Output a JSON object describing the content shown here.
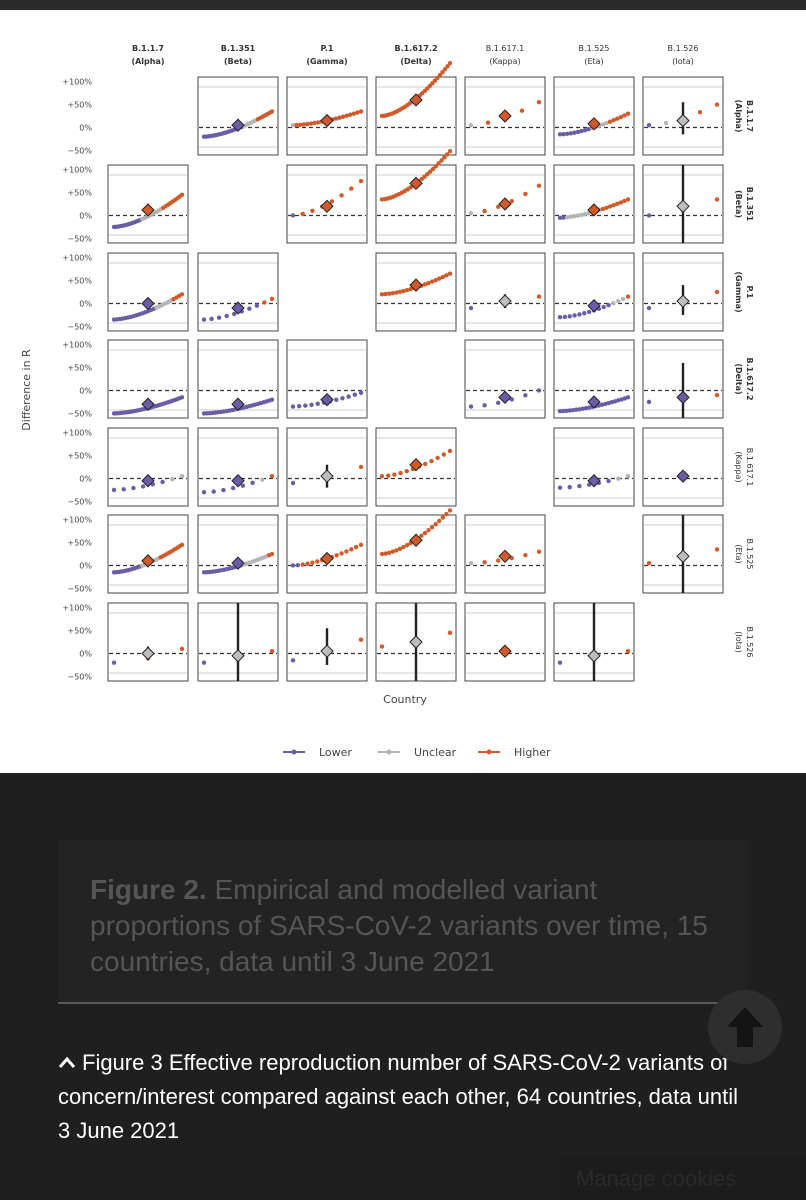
{
  "chart_data": {
    "type": "scatter",
    "subtype": "matrix-of-dot-plots",
    "columns": [
      {
        "name": "B.1.1.7",
        "sub": "(Alpha)",
        "bold": true
      },
      {
        "name": "B.1.351",
        "sub": "(Beta)",
        "bold": true
      },
      {
        "name": "P.1",
        "sub": "(Gamma)",
        "bold": true
      },
      {
        "name": "B.1.617.2",
        "sub": "(Delta)",
        "bold": true
      },
      {
        "name": "B.1.617.1",
        "sub": "(Kappa)",
        "bold": false
      },
      {
        "name": "B.1.525",
        "sub": "(Eta)",
        "bold": false
      },
      {
        "name": "B.1.526",
        "sub": "(Iota)",
        "bold": false
      }
    ],
    "rows": [
      {
        "name": "B.1.1.7",
        "sub": "(Alpha)",
        "bold": true
      },
      {
        "name": "B.1.351",
        "sub": "(Beta)",
        "bold": true
      },
      {
        "name": "P.1",
        "sub": "(Gamma)",
        "bold": true
      },
      {
        "name": "B.1.617.2",
        "sub": "(Delta)",
        "bold": true
      },
      {
        "name": "B.1.617.1",
        "sub": "(Kappa)",
        "bold": false
      },
      {
        "name": "B.1.525",
        "sub": "(Eta)",
        "bold": false
      },
      {
        "name": "B.1.526",
        "sub": "(Iota)",
        "bold": false
      }
    ],
    "ylabel": "Difference in R",
    "xlabel": "Country",
    "yticks": [
      "+100%",
      "+50%",
      "0%",
      "−50%"
    ],
    "ylim": [
      -60,
      110
    ],
    "legend": {
      "placement": "bottom",
      "entries": [
        {
          "label": "Lower",
          "color": "#6b5ca5"
        },
        {
          "label": "Unclear",
          "color": "#b4b4b4"
        },
        {
          "label": "Higher",
          "color": "#d05a2a"
        }
      ]
    },
    "cells": [
      {
        "r": 0,
        "c": 1,
        "n": 30,
        "min": -20,
        "max": 35,
        "est": 5,
        "ci": [
          3,
          7
        ],
        "mix": [
          0.55,
          0.2
        ]
      },
      {
        "r": 0,
        "c": 2,
        "n": 20,
        "min": 5,
        "max": 35,
        "est": 15,
        "ci": [
          12,
          18
        ],
        "mix": [
          0,
          0.05
        ]
      },
      {
        "r": 0,
        "c": 3,
        "n": 28,
        "min": 25,
        "max": 140,
        "est": 60,
        "ci": [
          55,
          65
        ],
        "mix": [
          0,
          0
        ]
      },
      {
        "r": 0,
        "c": 4,
        "n": 5,
        "min": 5,
        "max": 55,
        "est": 25,
        "ci": [
          15,
          35
        ],
        "mix": [
          0,
          0.25
        ]
      },
      {
        "r": 0,
        "c": 5,
        "n": 20,
        "min": -15,
        "max": 30,
        "est": 8,
        "ci": [
          5,
          11
        ],
        "mix": [
          0.45,
          0.25
        ]
      },
      {
        "r": 0,
        "c": 6,
        "n": 5,
        "min": 5,
        "max": 50,
        "est": 15,
        "ci": [
          -15,
          55
        ],
        "mix": [
          0.15,
          0.25
        ]
      },
      {
        "r": 1,
        "c": 0,
        "n": 30,
        "min": -25,
        "max": 45,
        "est": 12,
        "ci": [
          9,
          15
        ],
        "mix": [
          0.4,
          0.3
        ]
      },
      {
        "r": 1,
        "c": 2,
        "n": 8,
        "min": 0,
        "max": 75,
        "est": 20,
        "ci": [
          15,
          25
        ],
        "mix": [
          0.15,
          0
        ]
      },
      {
        "r": 1,
        "c": 3,
        "n": 25,
        "min": 35,
        "max": 140,
        "est": 70,
        "ci": [
          64,
          76
        ],
        "mix": [
          0,
          0
        ]
      },
      {
        "r": 1,
        "c": 4,
        "n": 6,
        "min": 5,
        "max": 65,
        "est": 25,
        "ci": [
          18,
          32
        ],
        "mix": [
          0,
          0.15
        ]
      },
      {
        "r": 1,
        "c": 5,
        "n": 20,
        "min": -5,
        "max": 35,
        "est": 12,
        "ci": [
          9,
          15
        ],
        "mix": [
          0.1,
          0.5
        ]
      },
      {
        "r": 1,
        "c": 6,
        "n": 3,
        "min": 0,
        "max": 35,
        "est": 20,
        "ci": [
          -60,
          140
        ],
        "mix": [
          0.35,
          0
        ]
      },
      {
        "r": 2,
        "c": 0,
        "n": 25,
        "min": -35,
        "max": 20,
        "est": 0,
        "ci": [
          -2,
          2
        ],
        "mix": [
          0.6,
          0.25
        ]
      },
      {
        "r": 2,
        "c": 1,
        "n": 10,
        "min": -35,
        "max": 10,
        "est": -10,
        "ci": [
          -13,
          -7
        ],
        "mix": [
          0.8,
          0
        ]
      },
      {
        "r": 2,
        "c": 3,
        "n": 20,
        "min": 20,
        "max": 65,
        "est": 40,
        "ci": [
          34,
          46
        ],
        "mix": [
          0,
          0
        ]
      },
      {
        "r": 2,
        "c": 4,
        "n": 3,
        "min": -10,
        "max": 15,
        "est": 5,
        "ci": [
          -10,
          20
        ],
        "mix": [
          0.35,
          0
        ]
      },
      {
        "r": 2,
        "c": 5,
        "n": 15,
        "min": -30,
        "max": 15,
        "est": -5,
        "ci": [
          -8,
          -2
        ],
        "mix": [
          0.7,
          0.2
        ]
      },
      {
        "r": 2,
        "c": 6,
        "n": 3,
        "min": -10,
        "max": 25,
        "est": 5,
        "ci": [
          -25,
          40
        ],
        "mix": [
          0.35,
          0
        ]
      },
      {
        "r": 3,
        "c": 0,
        "n": 30,
        "min": -50,
        "max": -15,
        "est": -30,
        "ci": [
          -33,
          -27
        ],
        "mix": [
          1,
          0
        ]
      },
      {
        "r": 3,
        "c": 1,
        "n": 25,
        "min": -50,
        "max": -20,
        "est": -30,
        "ci": [
          -33,
          -27
        ],
        "mix": [
          1,
          0
        ]
      },
      {
        "r": 3,
        "c": 2,
        "n": 12,
        "min": -35,
        "max": -5,
        "est": -20,
        "ci": [
          -24,
          -16
        ],
        "mix": [
          1,
          0
        ]
      },
      {
        "r": 3,
        "c": 4,
        "n": 6,
        "min": -35,
        "max": 0,
        "est": -15,
        "ci": [
          -20,
          -10
        ],
        "mix": [
          1,
          0
        ]
      },
      {
        "r": 3,
        "c": 5,
        "n": 22,
        "min": -45,
        "max": -15,
        "est": -25,
        "ci": [
          -28,
          -22
        ],
        "mix": [
          1,
          0
        ]
      },
      {
        "r": 3,
        "c": 6,
        "n": 3,
        "min": -25,
        "max": -10,
        "est": -15,
        "ci": [
          -60,
          60
        ],
        "mix": [
          0.65,
          0
        ]
      },
      {
        "r": 4,
        "c": 0,
        "n": 8,
        "min": -25,
        "max": 5,
        "est": -5,
        "ci": [
          -10,
          0
        ],
        "mix": [
          0.7,
          0.2
        ]
      },
      {
        "r": 4,
        "c": 1,
        "n": 8,
        "min": -30,
        "max": 5,
        "est": -5,
        "ci": [
          -10,
          0
        ],
        "mix": [
          0.8,
          0.1
        ]
      },
      {
        "r": 4,
        "c": 2,
        "n": 3,
        "min": -10,
        "max": 25,
        "est": 5,
        "ci": [
          -20,
          30
        ],
        "mix": [
          0.35,
          0
        ]
      },
      {
        "r": 4,
        "c": 3,
        "n": 12,
        "min": 5,
        "max": 60,
        "est": 30,
        "ci": [
          25,
          35
        ],
        "mix": [
          0,
          0
        ]
      },
      {
        "r": 4,
        "c": 5,
        "n": 8,
        "min": -20,
        "max": 5,
        "est": -5,
        "ci": [
          -9,
          -1
        ],
        "mix": [
          0.75,
          0.25
        ]
      },
      {
        "r": 4,
        "c": 6,
        "n": 1,
        "min": 5,
        "max": 5,
        "est": 5,
        "ci": [
          3,
          7
        ],
        "mix": [
          1,
          0
        ]
      },
      {
        "r": 5,
        "c": 0,
        "n": 30,
        "min": -15,
        "max": 45,
        "est": 10,
        "ci": [
          7,
          13
        ],
        "mix": [
          0.4,
          0.25
        ]
      },
      {
        "r": 5,
        "c": 1,
        "n": 25,
        "min": -15,
        "max": 25,
        "est": 5,
        "ci": [
          3,
          7
        ],
        "mix": [
          0.55,
          0.35
        ]
      },
      {
        "r": 5,
        "c": 2,
        "n": 15,
        "min": 0,
        "max": 45,
        "est": 15,
        "ci": [
          11,
          19
        ],
        "mix": [
          0.15,
          0
        ]
      },
      {
        "r": 5,
        "c": 3,
        "n": 20,
        "min": 25,
        "max": 120,
        "est": 55,
        "ci": [
          49,
          61
        ],
        "mix": [
          0,
          0
        ]
      },
      {
        "r": 5,
        "c": 4,
        "n": 6,
        "min": 5,
        "max": 30,
        "est": 20,
        "ci": [
          14,
          26
        ],
        "mix": [
          0,
          0.15
        ]
      },
      {
        "r": 5,
        "c": 6,
        "n": 3,
        "min": 5,
        "max": 35,
        "est": 20,
        "ci": [
          -60,
          140
        ],
        "mix": [
          0,
          0
        ]
      },
      {
        "r": 6,
        "c": 0,
        "n": 3,
        "min": -20,
        "max": 10,
        "est": 0,
        "ci": [
          -15,
          15
        ],
        "mix": [
          0.35,
          0
        ]
      },
      {
        "r": 6,
        "c": 1,
        "n": 3,
        "min": -20,
        "max": 5,
        "est": -5,
        "ci": [
          -60,
          140
        ],
        "mix": [
          0.35,
          0
        ]
      },
      {
        "r": 6,
        "c": 2,
        "n": 3,
        "min": -15,
        "max": 30,
        "est": 5,
        "ci": [
          -25,
          55
        ],
        "mix": [
          0.35,
          0
        ]
      },
      {
        "r": 6,
        "c": 3,
        "n": 3,
        "min": 15,
        "max": 45,
        "est": 25,
        "ci": [
          -60,
          140
        ],
        "mix": [
          0,
          0
        ]
      },
      {
        "r": 6,
        "c": 4,
        "n": 1,
        "min": 5,
        "max": 5,
        "est": 5,
        "ci": [
          3,
          7
        ],
        "mix": [
          0,
          0
        ]
      },
      {
        "r": 6,
        "c": 5,
        "n": 3,
        "min": -20,
        "max": 5,
        "est": -5,
        "ci": [
          -60,
          120
        ],
        "mix": [
          0.35,
          0
        ]
      }
    ]
  },
  "captions": {
    "fig2_bold": "Figure 2.",
    "fig2_text": " Empirical and modelled variant proportions of SARS-CoV-2 variants over time, 15 countries, data until 3 June 2021",
    "fig3_arrow": "^",
    "fig3_text": "Figure 3 Effective reproduction number of SARS-CoV-2 variants of concern/interest compared against each other, 64 countries, data until 3 June 2021"
  },
  "buttons": {
    "scroll_top_icon": "arrow-up-icon",
    "manage_cookies": "Manage cookies"
  },
  "colors": {
    "lower": "#6b5ca5",
    "unclear": "#b4b4b4",
    "higher": "#d05a2a",
    "estimate_lower": "#6b5ca5",
    "estimate_unclear": "#bdbdbd",
    "estimate_higher": "#d05a2a"
  }
}
